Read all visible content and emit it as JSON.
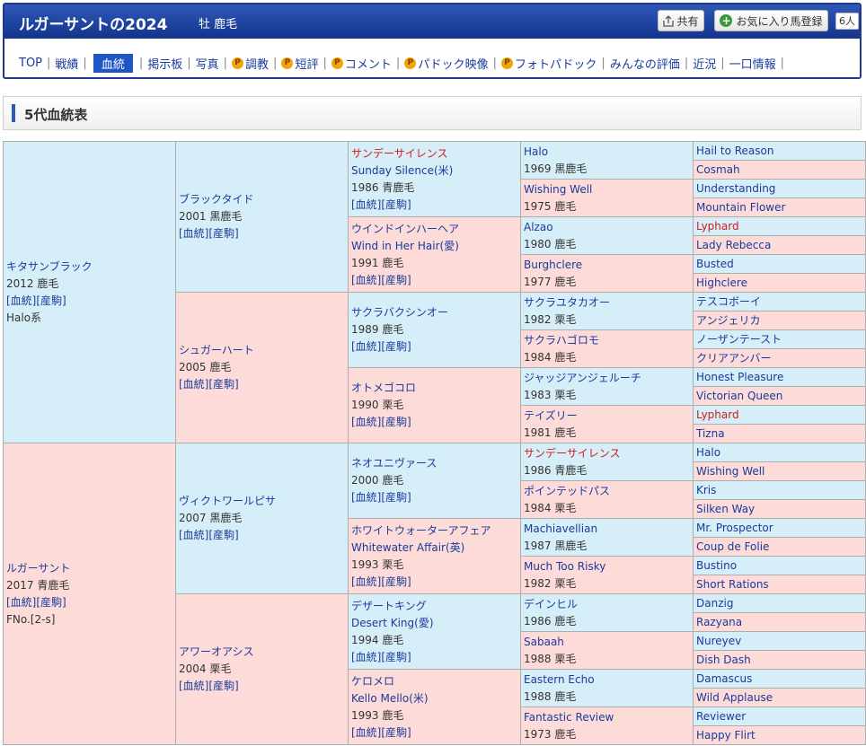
{
  "header": {
    "title": "ルガーサントの2024",
    "subtitle": "牡 鹿毛",
    "share_label": "共有",
    "fav_label": "お気に入り馬登録",
    "fav_count": "6人"
  },
  "nav": [
    {
      "label": "TOP",
      "p": false,
      "active": false
    },
    {
      "label": "戦績",
      "p": false,
      "active": false
    },
    {
      "label": "血統",
      "p": false,
      "active": true
    },
    {
      "label": "掲示板",
      "p": false,
      "active": false
    },
    {
      "label": "写真",
      "p": false,
      "active": false
    },
    {
      "label": "調教",
      "p": true,
      "active": false
    },
    {
      "label": "短評",
      "p": true,
      "active": false
    },
    {
      "label": "コメント",
      "p": true,
      "active": false
    },
    {
      "label": "パドック映像",
      "p": true,
      "active": false
    },
    {
      "label": "フォトパドック",
      "p": true,
      "active": false
    },
    {
      "label": "みんなの評価",
      "p": false,
      "active": false
    },
    {
      "label": "近況",
      "p": false,
      "active": false
    },
    {
      "label": "一口情報",
      "p": false,
      "active": false
    }
  ],
  "nav_p_icon": "P",
  "section_title": "5代血統表",
  "links": {
    "pedigree": "[血統]",
    "produce": "[産駒]"
  },
  "pedigree": {
    "g1": [
      {
        "name": "キタサンブラック",
        "info": "2012 鹿毛",
        "extra": "Halo系",
        "sex": "m"
      },
      {
        "name": "ルガーサント",
        "info": "2017 青鹿毛",
        "extra": "FNo.[2-s]",
        "sex": "f"
      }
    ],
    "g2": [
      {
        "name": "ブラックタイド",
        "info": "2001 黒鹿毛",
        "sex": "m"
      },
      {
        "name": "シュガーハート",
        "info": "2005 鹿毛",
        "sex": "f"
      },
      {
        "name": "ヴィクトワールピサ",
        "info": "2007 黒鹿毛",
        "sex": "m"
      },
      {
        "name": "アワーオアシス",
        "info": "2004 栗毛",
        "sex": "f"
      }
    ],
    "g3": [
      {
        "name": "サンデーサイレンス",
        "en": "Sunday Silence(米)",
        "info": "1986 青鹿毛",
        "red": true,
        "sex": "m"
      },
      {
        "name": "ウインドインハーヘア",
        "en": "Wind in Her Hair(愛)",
        "info": "1991 鹿毛",
        "red": false,
        "sex": "f"
      },
      {
        "name": "サクラバクシンオー",
        "en": "",
        "info": "1989 鹿毛",
        "red": false,
        "sex": "m"
      },
      {
        "name": "オトメゴコロ",
        "en": "",
        "info": "1990 栗毛",
        "red": false,
        "sex": "f"
      },
      {
        "name": "ネオユニヴァース",
        "en": "",
        "info": "2000 鹿毛",
        "red": false,
        "sex": "m"
      },
      {
        "name": "ホワイトウォーターアフェア",
        "en": "Whitewater Affair(英)",
        "info": "1993 栗毛",
        "red": false,
        "sex": "f"
      },
      {
        "name": "デザートキング",
        "en": "Desert King(愛)",
        "info": "1994 鹿毛",
        "red": false,
        "sex": "m"
      },
      {
        "name": "ケロメロ",
        "en": "Kello Mello(米)",
        "info": "1993 鹿毛",
        "red": false,
        "sex": "f"
      }
    ],
    "g4": [
      {
        "name": "Halo",
        "info": "1969 黒鹿毛",
        "red": false,
        "sex": "m"
      },
      {
        "name": "Wishing Well",
        "info": "1975 鹿毛",
        "red": false,
        "sex": "f"
      },
      {
        "name": "Alzao",
        "info": "1980 鹿毛",
        "red": false,
        "sex": "m"
      },
      {
        "name": "Burghclere",
        "info": "1977 鹿毛",
        "red": false,
        "sex": "f"
      },
      {
        "name": "サクラユタカオー",
        "info": "1982 栗毛",
        "red": false,
        "sex": "m"
      },
      {
        "name": "サクラハゴロモ",
        "info": "1984 鹿毛",
        "red": false,
        "sex": "f"
      },
      {
        "name": "ジャッジアンジェルーチ",
        "info": "1983 栗毛",
        "red": false,
        "sex": "m"
      },
      {
        "name": "テイズリー",
        "info": "1981 鹿毛",
        "red": false,
        "sex": "f"
      },
      {
        "name": "サンデーサイレンス",
        "info": "1986 青鹿毛",
        "red": true,
        "sex": "m"
      },
      {
        "name": "ポインテッドパス",
        "info": "1984 栗毛",
        "red": false,
        "sex": "f"
      },
      {
        "name": "Machiavellian",
        "info": "1987 黒鹿毛",
        "red": false,
        "sex": "m"
      },
      {
        "name": "Much Too Risky",
        "info": "1982 栗毛",
        "red": false,
        "sex": "f"
      },
      {
        "name": "デインヒル",
        "info": "1986 鹿毛",
        "red": false,
        "sex": "m"
      },
      {
        "name": "Sabaah",
        "info": "1988 栗毛",
        "red": false,
        "sex": "f"
      },
      {
        "name": "Eastern Echo",
        "info": "1988 鹿毛",
        "red": false,
        "sex": "m"
      },
      {
        "name": "Fantastic Review",
        "info": "1973 鹿毛",
        "red": false,
        "sex": "f"
      }
    ],
    "g5": [
      {
        "name": "Hail to Reason",
        "red": false,
        "sex": "m"
      },
      {
        "name": "Cosmah",
        "red": false,
        "sex": "f"
      },
      {
        "name": "Understanding",
        "red": false,
        "sex": "m"
      },
      {
        "name": "Mountain Flower",
        "red": false,
        "sex": "f"
      },
      {
        "name": "Lyphard",
        "red": true,
        "sex": "m"
      },
      {
        "name": "Lady Rebecca",
        "red": false,
        "sex": "f"
      },
      {
        "name": "Busted",
        "red": false,
        "sex": "m"
      },
      {
        "name": "Highclere",
        "red": false,
        "sex": "f"
      },
      {
        "name": "テスコボーイ",
        "red": false,
        "sex": "m"
      },
      {
        "name": "アンジェリカ",
        "red": false,
        "sex": "f"
      },
      {
        "name": "ノーザンテースト",
        "red": false,
        "sex": "m"
      },
      {
        "name": "クリアアンバー",
        "red": false,
        "sex": "f"
      },
      {
        "name": "Honest Pleasure",
        "red": false,
        "sex": "m"
      },
      {
        "name": "Victorian Queen",
        "red": false,
        "sex": "f"
      },
      {
        "name": "Lyphard",
        "red": true,
        "sex": "m"
      },
      {
        "name": "Tizna",
        "red": false,
        "sex": "f"
      },
      {
        "name": "Halo",
        "red": false,
        "sex": "m"
      },
      {
        "name": "Wishing Well",
        "red": false,
        "sex": "f"
      },
      {
        "name": "Kris",
        "red": false,
        "sex": "m"
      },
      {
        "name": "Silken Way",
        "red": false,
        "sex": "f"
      },
      {
        "name": "Mr. Prospector",
        "red": false,
        "sex": "m"
      },
      {
        "name": "Coup de Folie",
        "red": false,
        "sex": "f"
      },
      {
        "name": "Bustino",
        "red": false,
        "sex": "m"
      },
      {
        "name": "Short Rations",
        "red": false,
        "sex": "f"
      },
      {
        "name": "Danzig",
        "red": false,
        "sex": "m"
      },
      {
        "name": "Razyana",
        "red": false,
        "sex": "f"
      },
      {
        "name": "Nureyev",
        "red": false,
        "sex": "m"
      },
      {
        "name": "Dish Dash",
        "red": false,
        "sex": "f"
      },
      {
        "name": "Damascus",
        "red": false,
        "sex": "m"
      },
      {
        "name": "Wild Applause",
        "red": false,
        "sex": "f"
      },
      {
        "name": "Reviewer",
        "red": false,
        "sex": "m"
      },
      {
        "name": "Happy Flirt",
        "red": false,
        "sex": "f"
      }
    ]
  },
  "colors": {
    "male_bg": "#d6eef8",
    "female_bg": "#fcdbd8",
    "highlight": "#d31c1c",
    "accent": "#1f55c5"
  }
}
